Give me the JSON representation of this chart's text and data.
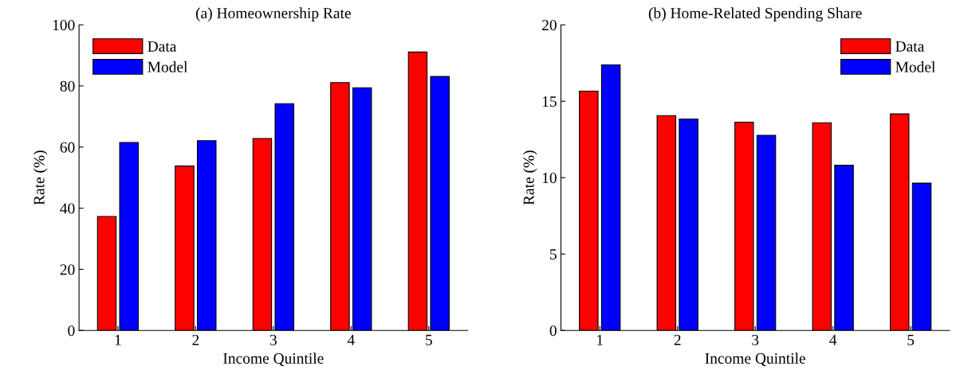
{
  "chart_data": [
    {
      "type": "bar",
      "title": "(a) Homeownership Rate",
      "xlabel": "Income Quintile",
      "ylabel": "Rate (%)",
      "categories": [
        "1",
        "2",
        "3",
        "4",
        "5"
      ],
      "series": [
        {
          "name": "Data",
          "color": "#ff0000",
          "values": [
            37.3,
            53.8,
            62.8,
            81.1,
            91.1
          ]
        },
        {
          "name": "Model",
          "color": "#0000ff",
          "values": [
            61.5,
            62.1,
            74.2,
            79.4,
            83.1
          ]
        }
      ],
      "ylim": [
        0,
        100
      ],
      "yticks": [
        0,
        20,
        40,
        60,
        80,
        100
      ],
      "legend": "top left",
      "grid": false
    },
    {
      "type": "bar",
      "title": "(b) Home-Related Spending Share",
      "xlabel": "Income Quintile",
      "ylabel": "Rate (%)",
      "categories": [
        "1",
        "2",
        "3",
        "4",
        "5"
      ],
      "series": [
        {
          "name": "Data",
          "color": "#ff0000",
          "values": [
            15.66,
            14.06,
            13.63,
            13.59,
            14.17
          ]
        },
        {
          "name": "Model",
          "color": "#0000ff",
          "values": [
            17.38,
            13.84,
            12.77,
            10.81,
            9.64
          ]
        }
      ],
      "ylim": [
        0,
        20
      ],
      "yticks": [
        0,
        5,
        10,
        15,
        20
      ],
      "legend": "top right",
      "grid": false
    }
  ]
}
